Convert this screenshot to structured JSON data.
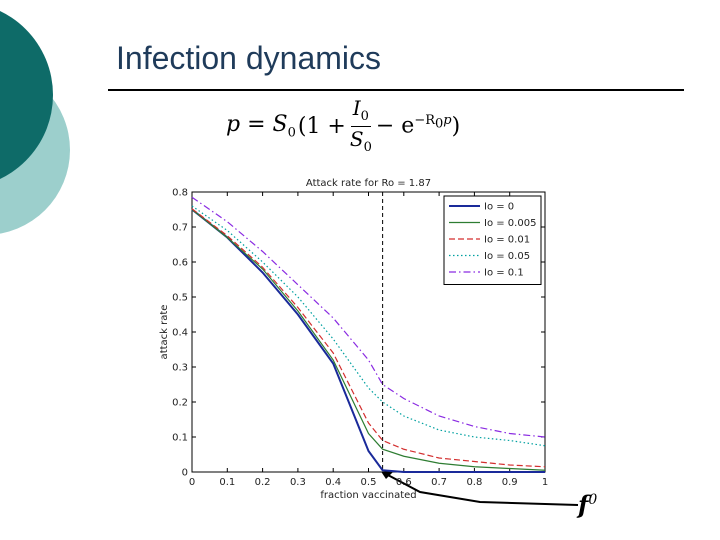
{
  "slide": {
    "title": "Infection dynamics",
    "formula": {
      "lhs": "p = S",
      "lhs_sub": "0",
      "open": "(1 +",
      "num": "I",
      "num_sub": "0",
      "den": "S",
      "den_sub": "0",
      "minus": "− e",
      "exp": "−R",
      "exp_sub": "0",
      "exp_tail": "p",
      "close": ")"
    },
    "annotation": "f",
    "annotation_sup": "0"
  },
  "colors": {
    "theme_dark": "#0e6b68",
    "theme_light": "#9ccfcc",
    "title": "#1f3b5a",
    "series": [
      "#1a2a9a",
      "#2e7d32",
      "#d32f2f",
      "#00a0a0",
      "#8a2be2"
    ]
  },
  "chart_data": {
    "type": "line",
    "title": "Attack rate for Ro = 1.87",
    "xlabel": "fraction vaccinated",
    "ylabel": "attack rate",
    "xlim": [
      0,
      1
    ],
    "ylim": [
      0,
      0.8
    ],
    "xticks": [
      "0",
      "0.1",
      "0.2",
      "0.3",
      "0.4",
      "0.5",
      "0.6",
      "0.7",
      "0.8",
      "0.9",
      "1"
    ],
    "yticks": [
      "0",
      "0.1",
      "0.2",
      "0.3",
      "0.4",
      "0.5",
      "0.6",
      "0.7",
      "0.8"
    ],
    "vline_x": 0.54,
    "legend_position": "top-right",
    "x": [
      0,
      0.1,
      0.2,
      0.3,
      0.4,
      0.5,
      0.54,
      0.6,
      0.7,
      0.8,
      0.9,
      1.0
    ],
    "series": [
      {
        "name": "Io = 0",
        "style": "solid",
        "values": [
          0.75,
          0.67,
          0.57,
          0.45,
          0.31,
          0.06,
          0.005,
          0.0,
          0.0,
          0.0,
          0.0,
          0.0
        ]
      },
      {
        "name": "Io = 0.005",
        "style": "solid",
        "values": [
          0.75,
          0.67,
          0.58,
          0.46,
          0.32,
          0.11,
          0.065,
          0.045,
          0.025,
          0.015,
          0.01,
          0.005
        ]
      },
      {
        "name": "Io = 0.01",
        "style": "dashed",
        "values": [
          0.752,
          0.675,
          0.585,
          0.47,
          0.34,
          0.14,
          0.09,
          0.065,
          0.04,
          0.03,
          0.02,
          0.015
        ]
      },
      {
        "name": "Io = 0.05",
        "style": "dotted",
        "values": [
          0.76,
          0.69,
          0.6,
          0.5,
          0.38,
          0.24,
          0.2,
          0.16,
          0.12,
          0.1,
          0.09,
          0.075
        ]
      },
      {
        "name": "Io = 0.1",
        "style": "dashdot",
        "values": [
          0.785,
          0.715,
          0.63,
          0.535,
          0.44,
          0.32,
          0.25,
          0.21,
          0.16,
          0.13,
          0.11,
          0.1
        ]
      }
    ]
  }
}
